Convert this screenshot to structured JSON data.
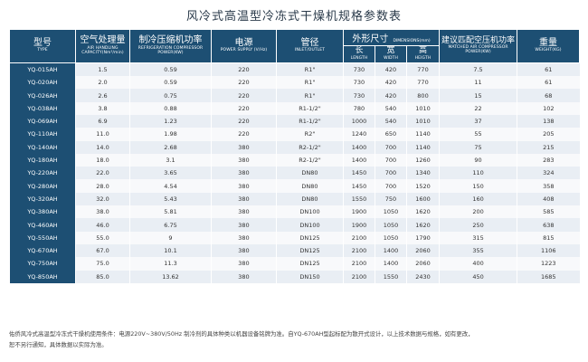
{
  "title": "风冷式高温型冷冻式干燥机规格参数表",
  "headers": {
    "model": {
      "cn": "型号",
      "en": "TYPE"
    },
    "capacity": {
      "cn": "空气处理量",
      "en": "AIR HANDLING CAPACITY(Nm³/min)"
    },
    "power": {
      "cn": "制冷压缩机功率",
      "en": "REFRIGERATION COMPRESSOR POWER(KW)"
    },
    "supply": {
      "cn": "电源",
      "en": "POWER SUPPLY (V/Hz)"
    },
    "pipe": {
      "cn": "管径",
      "en": "INLET/OUTLET"
    },
    "dimensions": {
      "cn": "外形尺寸",
      "en": "DIMENSIONS(mm)"
    },
    "length": {
      "cn": "长",
      "en": "LENGTH"
    },
    "width": {
      "cn": "宽",
      "en": "WIDTH"
    },
    "height": {
      "cn": "高",
      "en": "HEIGTH"
    },
    "matched": {
      "cn": "建议匹配空压机功率",
      "en": "MATCHED AIR COMPRESSOR POWER(KW)"
    },
    "weight": {
      "cn": "重量",
      "en": "WEIGHT(KG)"
    }
  },
  "rows": [
    [
      "YQ-015AH",
      "1.5",
      "0.59",
      "220",
      "R1\"",
      "730",
      "420",
      "770",
      "7.5",
      "61"
    ],
    [
      "YQ-020AH",
      "2.0",
      "0.59",
      "220",
      "R1\"",
      "730",
      "420",
      "770",
      "11",
      "61"
    ],
    [
      "YQ-026AH",
      "2.6",
      "0.75",
      "220",
      "R1\"",
      "730",
      "420",
      "800",
      "15",
      "68"
    ],
    [
      "YQ-038AH",
      "3.8",
      "0.88",
      "220",
      "R1-1/2\"",
      "780",
      "540",
      "1010",
      "22",
      "102"
    ],
    [
      "YQ-069AH",
      "6.9",
      "1.23",
      "220",
      "R1-1/2\"",
      "1000",
      "540",
      "1010",
      "37",
      "138"
    ],
    [
      "YQ-110AH",
      "11.0",
      "1.98",
      "220",
      "R2\"",
      "1240",
      "650",
      "1140",
      "55",
      "205"
    ],
    [
      "YQ-140AH",
      "14.0",
      "2.68",
      "380",
      "R2-1/2\"",
      "1400",
      "700",
      "1140",
      "75",
      "215"
    ],
    [
      "YQ-180AH",
      "18.0",
      "3.1",
      "380",
      "R2-1/2\"",
      "1400",
      "700",
      "1260",
      "90",
      "283"
    ],
    [
      "YQ-220AH",
      "22.0",
      "3.65",
      "380",
      "DN80",
      "1450",
      "700",
      "1340",
      "110",
      "324"
    ],
    [
      "YQ-280AH",
      "28.0",
      "4.54",
      "380",
      "DN80",
      "1450",
      "700",
      "1520",
      "150",
      "358"
    ],
    [
      "YQ-320AH",
      "32.0",
      "5.43",
      "380",
      "DN80",
      "1550",
      "750",
      "1600",
      "160",
      "408"
    ],
    [
      "YQ-380AH",
      "38.0",
      "5.81",
      "380",
      "DN100",
      "1900",
      "1050",
      "1620",
      "200",
      "585"
    ],
    [
      "YQ-460AH",
      "46.0",
      "6.75",
      "380",
      "DN100",
      "1900",
      "1050",
      "1620",
      "250",
      "638"
    ],
    [
      "YQ-550AH",
      "55.0",
      "9",
      "380",
      "DN125",
      "2100",
      "1050",
      "1790",
      "315",
      "815"
    ],
    [
      "YQ-670AH",
      "67.0",
      "10.1",
      "380",
      "DN125",
      "2100",
      "1400",
      "2060",
      "355",
      "1106"
    ],
    [
      "YQ-750AH",
      "75.0",
      "11.3",
      "380",
      "DN125",
      "2100",
      "1400",
      "2060",
      "400",
      "1223"
    ],
    [
      "YQ-850AH",
      "85.0",
      "13.62",
      "380",
      "DN150",
      "2100",
      "1550",
      "2430",
      "450",
      "1685"
    ]
  ],
  "footer": {
    "line1": "佑侨风冷式高温型冷冻式干燥机使用条件：电源220V~380V/50Hz  制冷剂的具体种类以机器设备铭牌为准。自YQ-670AH型起标配为散开式设计，以上技术数据与规格，如有更改，",
    "line2": "恕不另行通知，具体数据以实际为准。"
  }
}
